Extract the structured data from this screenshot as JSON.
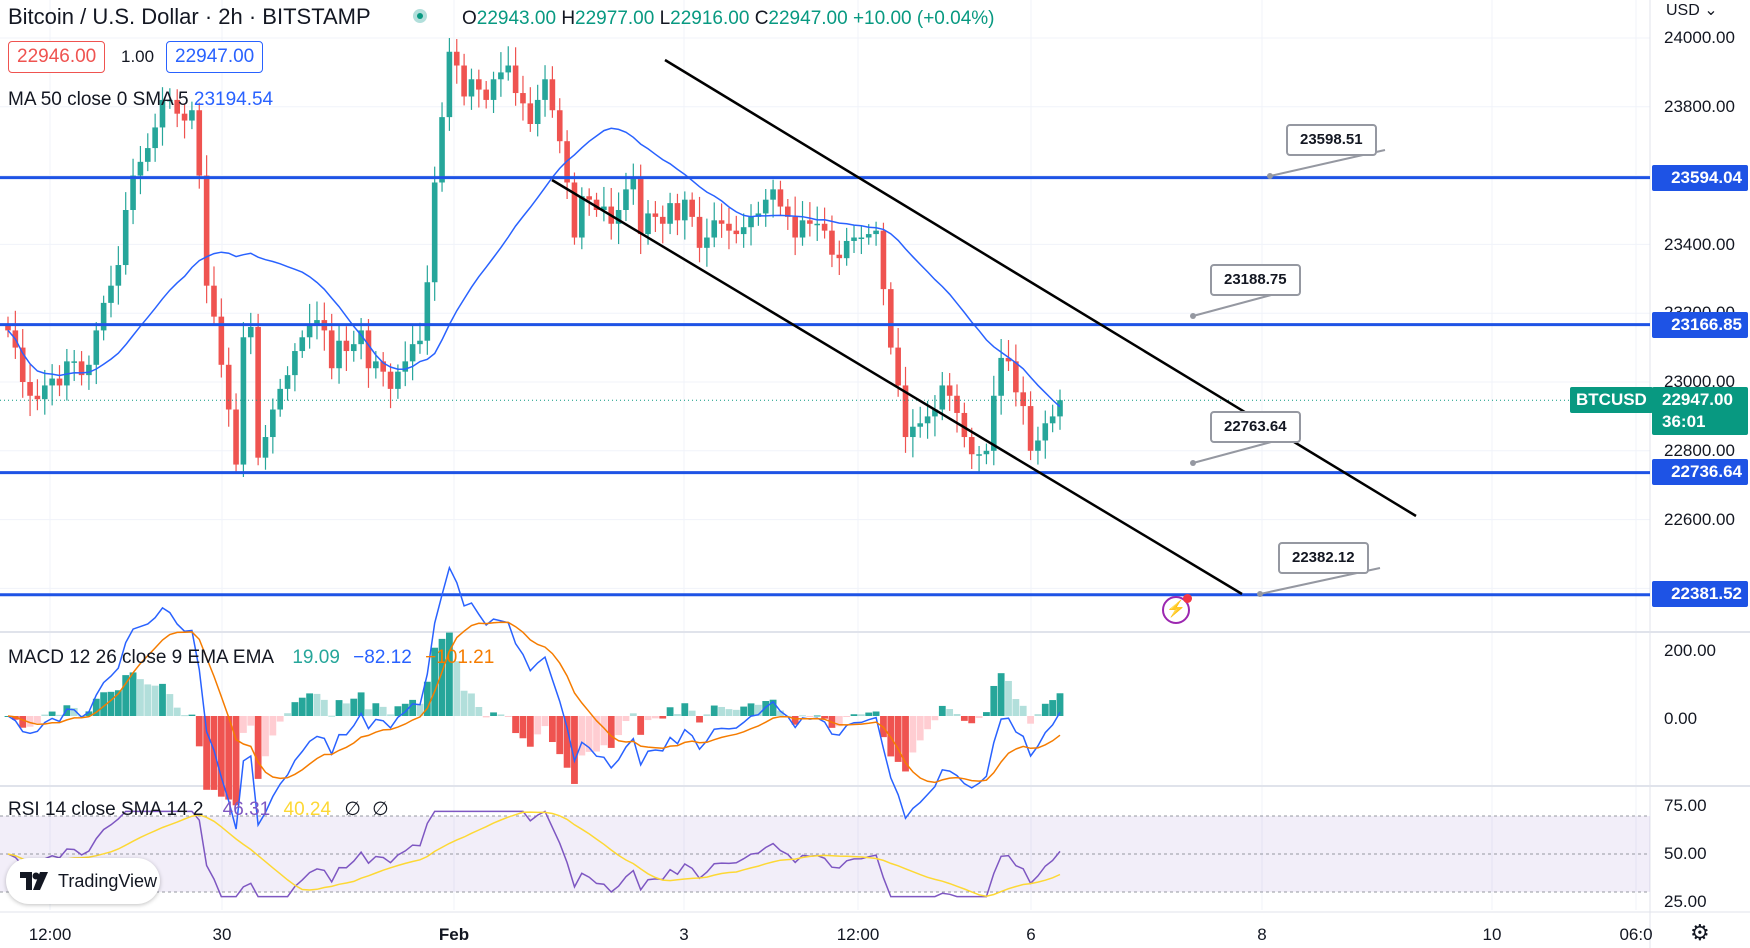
{
  "header": {
    "symbol_title": "Bitcoin / U.S. Dollar · 2h · BITSTAMP",
    "open_label": "O",
    "open": "22943.00",
    "high_label": "H",
    "high": "22977.00",
    "low_label": "L",
    "low": "22916.00",
    "close_label": "C",
    "close": "22947.00",
    "change": "+10.00 (+0.04%)"
  },
  "trade": {
    "sell": "22946.00",
    "qty": "1.00",
    "buy": "22947.00"
  },
  "currency_menu": "USD",
  "ma": {
    "label": "MA 50 close 0 SMA 5",
    "value": "23194.54"
  },
  "macd": {
    "label": "MACD 12 26 close 9 EMA EMA",
    "hist": "19.09",
    "macd": "−82.12",
    "signal": "−101.21"
  },
  "rsi": {
    "label": "RSI 14 close SMA 14 2",
    "value": "46.31",
    "sma": "40.24",
    "n1": "∅",
    "n2": "∅"
  },
  "price_axis": [
    "24000.00",
    "23800.00",
    "23400.00",
    "23200.00",
    "23000.00",
    "22800.00",
    "22600.00"
  ],
  "macd_axis": [
    "200.00",
    "0.00"
  ],
  "rsi_axis": [
    "75.00",
    "50.00",
    "25.00"
  ],
  "time_axis": [
    "12:00",
    "30",
    "Feb",
    "3",
    "12:00",
    "6",
    "8",
    "10",
    "06:0"
  ],
  "levels": [
    "23594.04",
    "23166.85",
    "22736.64",
    "22381.52"
  ],
  "current": {
    "ticker": "BTCUSD",
    "price": "22947.00",
    "countdown": "36:01"
  },
  "callouts": [
    "23598.51",
    "23188.75",
    "22763.64",
    "22382.12"
  ],
  "logo_text": "TradingView",
  "colors": {
    "up": "#26a69a",
    "down": "#ef5350",
    "level": "#1e53e5",
    "ma": "#2962ff",
    "signal": "#f57c00",
    "rsi": "#7e57c2",
    "rsi_sma": "#fdd835",
    "current": "#089981"
  }
}
